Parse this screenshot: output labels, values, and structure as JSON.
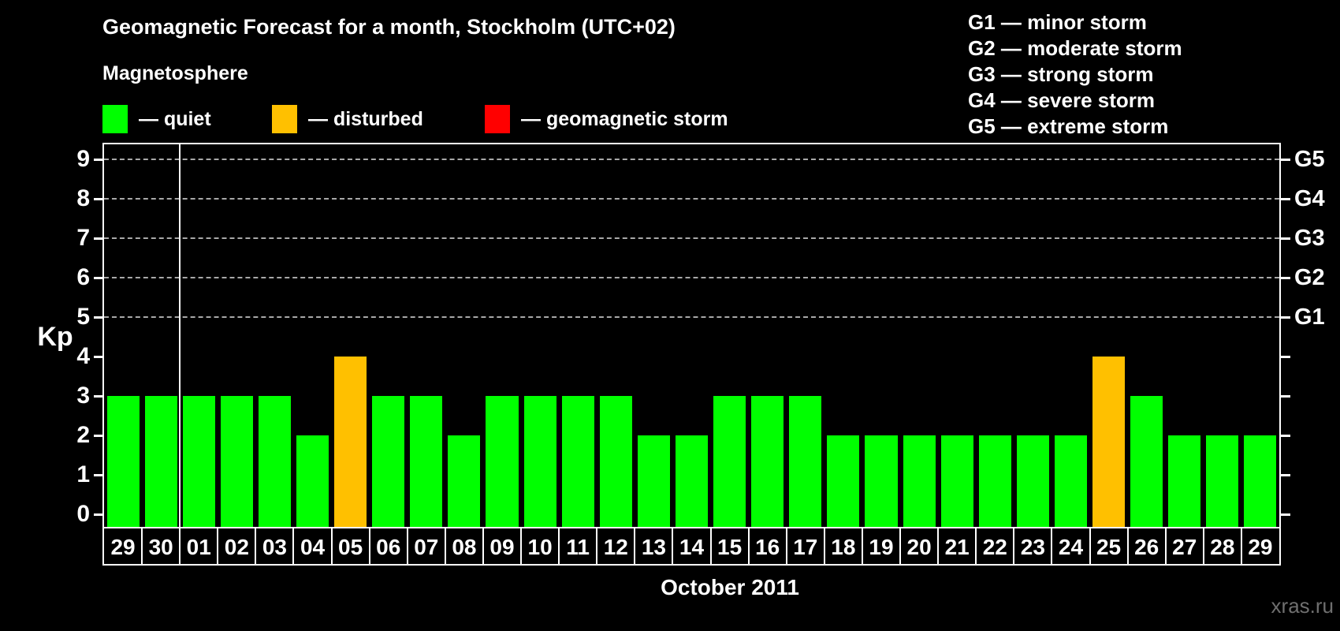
{
  "title": "Geomagnetic Forecast for a month, Stockholm (UTC+02)",
  "subtitle": "Magnetosphere",
  "legend": {
    "items": [
      {
        "name": "quiet",
        "label": "— quiet",
        "color": "#00ff00"
      },
      {
        "name": "disturbed",
        "label": "— disturbed",
        "color": "#ffc000"
      },
      {
        "name": "storm",
        "label": "— geomagnetic storm",
        "color": "#ff0000"
      }
    ]
  },
  "storm_scale_legend": [
    "G1 — minor storm",
    "G2 — moderate storm",
    "G3 — strong storm",
    "G4 — severe storm",
    "G5 — extreme storm"
  ],
  "watermark": "xras.ru",
  "chart_data": {
    "type": "bar",
    "title": "Geomagnetic Forecast for a month, Stockholm (UTC+02)",
    "subtitle": "Magnetosphere",
    "xlabel": "October 2011",
    "ylabel": "Kp",
    "ylim": [
      0,
      9
    ],
    "yticks": [
      0,
      1,
      2,
      3,
      4,
      5,
      6,
      7,
      8,
      9
    ],
    "gridline_values": [
      5,
      6,
      7,
      8,
      9
    ],
    "grid": "dashed, only at storm levels G1-G5",
    "legend_position": "top",
    "right_axis": [
      {
        "label": "G1",
        "value": 5
      },
      {
        "label": "G2",
        "value": 6
      },
      {
        "label": "G3",
        "value": 7
      },
      {
        "label": "G4",
        "value": 8
      },
      {
        "label": "G5",
        "value": 9
      }
    ],
    "month_boundary_after_index": 1,
    "categories": [
      "29",
      "30",
      "01",
      "02",
      "03",
      "04",
      "05",
      "06",
      "07",
      "08",
      "09",
      "10",
      "11",
      "12",
      "13",
      "14",
      "15",
      "16",
      "17",
      "18",
      "19",
      "20",
      "21",
      "22",
      "23",
      "24",
      "25",
      "26",
      "27",
      "28",
      "29"
    ],
    "values": [
      3,
      3,
      3,
      3,
      3,
      2,
      4,
      3,
      3,
      2,
      3,
      3,
      3,
      3,
      2,
      2,
      3,
      3,
      3,
      2,
      2,
      2,
      2,
      2,
      2,
      2,
      4,
      3,
      2,
      2,
      2
    ],
    "statuses": [
      "quiet",
      "quiet",
      "quiet",
      "quiet",
      "quiet",
      "quiet",
      "disturbed",
      "quiet",
      "quiet",
      "quiet",
      "quiet",
      "quiet",
      "quiet",
      "quiet",
      "quiet",
      "quiet",
      "quiet",
      "quiet",
      "quiet",
      "quiet",
      "quiet",
      "quiet",
      "quiet",
      "quiet",
      "quiet",
      "quiet",
      "disturbed",
      "quiet",
      "quiet",
      "quiet",
      "quiet"
    ],
    "status_colors": {
      "quiet": "#00ff00",
      "disturbed": "#ffc000",
      "storm": "#ff0000"
    }
  }
}
